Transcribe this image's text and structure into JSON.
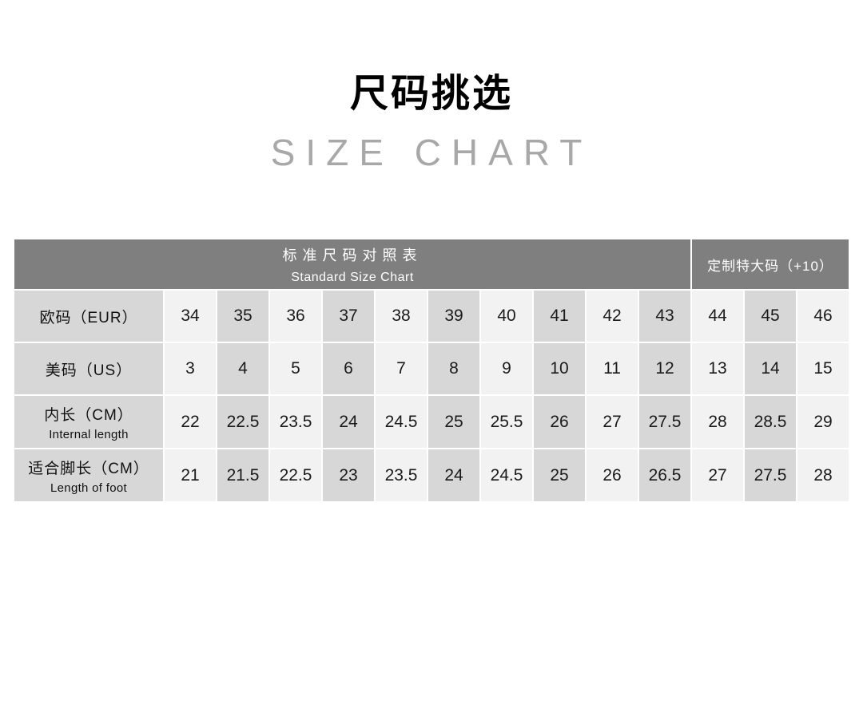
{
  "titles": {
    "cn": "尺码挑选",
    "en": "SIZE CHART"
  },
  "colors": {
    "header_bg": "#7f7f7f",
    "header_text": "#ffffff",
    "label_bg": "#d7d7d7",
    "cell_light": "#f2f2f2",
    "cell_dark": "#d7d7d7",
    "title_en_gray": "#a8a8a8"
  },
  "chart_data": {
    "type": "table",
    "title": "尺码挑选",
    "subtitle": "SIZE CHART",
    "header": {
      "standard_cn": "标准尺码对照表",
      "standard_en": "Standard Size Chart",
      "custom": "定制特大码（+10）"
    },
    "layout_hint": "standard section spans label column + EUR 34-43; custom section spans EUR 44-46",
    "rows": [
      {
        "label_cn": "欧码（EUR）",
        "values": [
          "34",
          "35",
          "36",
          "37",
          "38",
          "39",
          "40",
          "41",
          "42",
          "43",
          "44",
          "45",
          "46"
        ]
      },
      {
        "label_cn": "美码（US）",
        "values": [
          "3",
          "4",
          "5",
          "6",
          "7",
          "8",
          "9",
          "10",
          "11",
          "12",
          "13",
          "14",
          "15"
        ]
      },
      {
        "label_cn": "内长（CM）",
        "label_en": "Internal length",
        "values": [
          "22",
          "22.5",
          "23.5",
          "24",
          "24.5",
          "25",
          "25.5",
          "26",
          "27",
          "27.5",
          "28",
          "28.5",
          "29"
        ]
      },
      {
        "label_cn": "适合脚长（CM）",
        "label_en": "Length of foot",
        "values": [
          "21",
          "21.5",
          "22.5",
          "23",
          "23.5",
          "24",
          "24.5",
          "25",
          "26",
          "26.5",
          "27",
          "27.5",
          "28"
        ]
      }
    ]
  }
}
